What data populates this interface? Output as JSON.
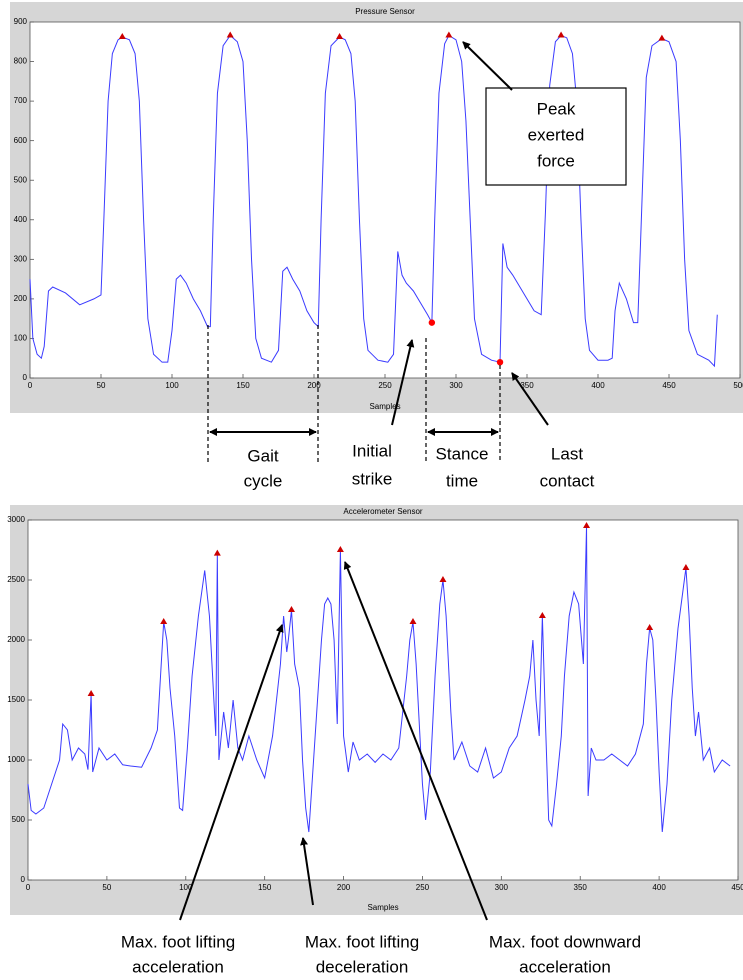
{
  "chart_data": [
    {
      "type": "line",
      "title": "Pressure Sensor",
      "xlabel": "Samples",
      "xlim": [
        0,
        500
      ],
      "ylim": [
        0,
        900
      ],
      "xticks": [
        0,
        50,
        100,
        150,
        200,
        250,
        300,
        350,
        400,
        450,
        500
      ],
      "yticks": [
        0,
        100,
        200,
        300,
        400,
        500,
        600,
        700,
        800,
        900
      ],
      "color": "#3b3bff",
      "x": [
        0,
        2,
        5,
        8,
        10,
        13,
        16,
        25,
        35,
        45,
        50,
        52,
        55,
        58,
        62,
        65,
        70,
        74,
        77,
        80,
        83,
        87,
        93,
        97,
        100,
        103,
        106,
        110,
        115,
        120,
        125,
        127,
        129,
        132,
        136,
        141,
        146,
        150,
        153,
        156,
        159,
        163,
        170,
        175,
        178,
        181,
        185,
        190,
        195,
        200,
        203,
        205,
        208,
        212,
        218,
        222,
        226,
        229,
        232,
        235,
        238,
        245,
        252,
        256,
        259,
        262,
        265,
        270,
        275,
        280,
        283,
        285,
        288,
        292,
        295,
        300,
        304,
        307,
        310,
        313,
        318,
        325,
        331,
        333,
        336,
        340,
        345,
        350,
        355,
        360,
        363,
        366,
        370,
        374,
        378,
        382,
        385,
        388,
        391,
        394,
        400,
        407,
        410,
        412,
        415,
        420,
        425,
        428,
        431,
        434,
        438,
        445,
        450,
        455,
        458,
        461,
        464,
        470,
        478,
        482,
        484
      ],
      "values": [
        250,
        100,
        60,
        50,
        80,
        220,
        230,
        215,
        185,
        200,
        210,
        400,
        700,
        820,
        855,
        862,
        855,
        820,
        700,
        400,
        150,
        60,
        40,
        40,
        120,
        250,
        260,
        240,
        200,
        170,
        130,
        130,
        400,
        720,
        840,
        866,
        850,
        800,
        600,
        300,
        100,
        50,
        40,
        70,
        270,
        280,
        250,
        220,
        170,
        140,
        130,
        400,
        720,
        840,
        862,
        855,
        820,
        700,
        400,
        150,
        70,
        45,
        40,
        60,
        320,
        260,
        240,
        220,
        190,
        160,
        140,
        400,
        720,
        845,
        866,
        855,
        800,
        650,
        400,
        150,
        60,
        45,
        40,
        340,
        280,
        260,
        230,
        200,
        170,
        160,
        420,
        740,
        850,
        866,
        860,
        820,
        700,
        400,
        150,
        70,
        45,
        45,
        50,
        170,
        240,
        200,
        140,
        140,
        450,
        760,
        840,
        858,
        850,
        800,
        600,
        300,
        120,
        60,
        45,
        30,
        160
      ],
      "peaks": {
        "color": "#cc0000",
        "x": [
          65,
          141,
          218,
          295,
          374,
          445
        ],
        "values": [
          862,
          866,
          862,
          866,
          866,
          858
        ]
      },
      "events": {
        "color": "#ff0000",
        "x": [
          283,
          331
        ],
        "values": [
          140,
          40
        ]
      },
      "annotations": [
        {
          "lines": [
            "Peak",
            "exerted",
            "force"
          ]
        },
        {
          "lines": [
            "Gait",
            "cycle"
          ]
        },
        {
          "lines": [
            "Initial",
            "strike"
          ]
        },
        {
          "lines": [
            "Stance",
            "time"
          ]
        },
        {
          "lines": [
            "Last",
            "contact"
          ]
        }
      ]
    },
    {
      "type": "line",
      "title": "Accelerometer Sensor",
      "xlabel": "Samples",
      "xlim": [
        0,
        450
      ],
      "ylim": [
        0,
        3000
      ],
      "xticks": [
        0,
        50,
        100,
        150,
        200,
        250,
        300,
        350,
        400,
        450
      ],
      "yticks": [
        0,
        500,
        1000,
        1500,
        2000,
        2500,
        3000
      ],
      "color": "#3b3bff",
      "x": [
        0,
        2,
        5,
        10,
        15,
        20,
        22,
        25,
        28,
        32,
        36,
        38,
        40,
        41,
        45,
        50,
        55,
        60,
        65,
        72,
        78,
        82,
        84,
        86,
        88,
        90,
        93,
        96,
        98,
        101,
        104,
        108,
        112,
        115,
        117,
        119,
        120,
        121,
        124,
        127,
        130,
        133,
        136,
        140,
        145,
        150,
        155,
        160,
        162,
        164,
        165,
        167,
        169,
        172,
        174,
        176,
        178,
        180,
        183,
        186,
        188,
        190,
        192,
        194,
        196,
        198,
        200,
        203,
        206,
        210,
        215,
        220,
        225,
        230,
        235,
        240,
        242,
        244,
        246,
        248,
        250,
        252,
        255,
        258,
        261,
        263,
        265,
        268,
        270,
        275,
        280,
        285,
        290,
        295,
        300,
        305,
        310,
        315,
        318,
        320,
        322,
        324,
        326,
        328,
        330,
        332,
        335,
        338,
        340,
        343,
        346,
        349,
        352,
        354,
        355,
        357,
        360,
        365,
        370,
        375,
        380,
        385,
        390,
        392,
        394,
        396,
        398,
        400,
        402,
        405,
        408,
        412,
        415,
        417,
        419,
        421,
        423,
        425,
        428,
        432,
        435,
        440,
        445
      ],
      "values": [
        800,
        580,
        550,
        600,
        800,
        1000,
        1300,
        1250,
        1000,
        1100,
        1050,
        920,
        1550,
        900,
        1100,
        1000,
        1050,
        960,
        950,
        940,
        1100,
        1250,
        1700,
        2150,
        2000,
        1600,
        1200,
        600,
        580,
        1100,
        1700,
        2200,
        2580,
        2200,
        1700,
        1200,
        2720,
        1000,
        1400,
        1100,
        1500,
        1100,
        1000,
        1200,
        1000,
        850,
        1200,
        1800,
        2200,
        1900,
        2000,
        2250,
        1800,
        1600,
        1000,
        600,
        400,
        800,
        1400,
        2000,
        2300,
        2350,
        2300,
        2000,
        1300,
        2750,
        1200,
        900,
        1150,
        1000,
        1050,
        980,
        1050,
        1000,
        1100,
        1700,
        2000,
        2150,
        1800,
        1300,
        800,
        500,
        900,
        1700,
        2300,
        2500,
        2200,
        1400,
        1000,
        1150,
        950,
        900,
        1100,
        850,
        900,
        1100,
        1200,
        1500,
        1700,
        2000,
        1500,
        1200,
        2200,
        1300,
        500,
        450,
        800,
        1200,
        1700,
        2200,
        2400,
        2300,
        1800,
        2950,
        700,
        1100,
        1000,
        1000,
        1050,
        1000,
        950,
        1050,
        1300,
        1800,
        2100,
        2000,
        1500,
        900,
        400,
        800,
        1500,
        2100,
        2400,
        2600,
        2200,
        1600,
        1200,
        1400,
        1000,
        1100,
        900,
        1000,
        950
      ],
      "peaks": {
        "color": "#cc0000",
        "x": [
          40,
          86,
          120,
          167,
          198,
          244,
          263,
          326,
          354,
          394,
          417
        ],
        "values": [
          1550,
          2150,
          2720,
          2250,
          2750,
          2150,
          2500,
          2200,
          2950,
          2100,
          2600
        ]
      },
      "annotations": [
        {
          "lines": [
            "Max. foot lifting",
            "acceleration"
          ]
        },
        {
          "lines": [
            "Max. foot lifting",
            "deceleration"
          ]
        },
        {
          "lines": [
            "Max. foot downward",
            "acceleration"
          ]
        }
      ]
    }
  ]
}
